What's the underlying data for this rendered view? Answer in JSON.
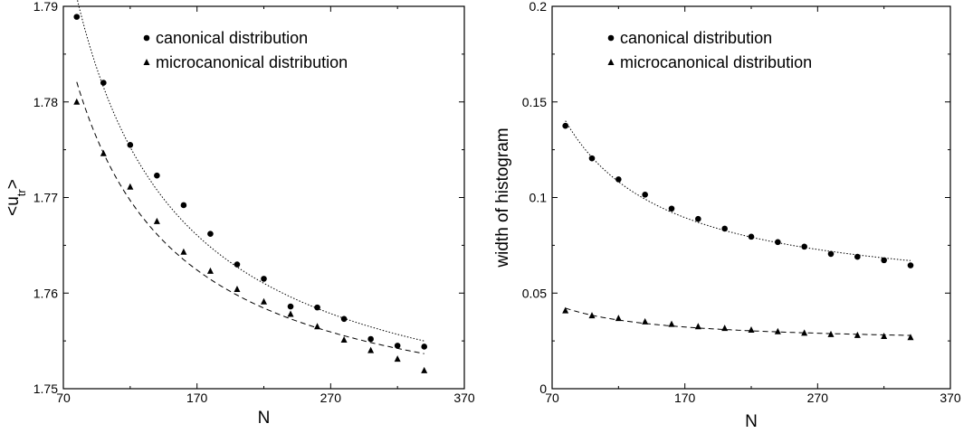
{
  "chart_data": [
    {
      "type": "scatter",
      "xlabel": "N",
      "ylabel": "<u",
      "ylabel_sub": "tr",
      "ylabel_suffix": ">",
      "xlim": [
        70,
        370
      ],
      "ylim": [
        1.75,
        1.79
      ],
      "xticks": [
        "70",
        "170",
        "270",
        "370"
      ],
      "yticks": [
        "1.75",
        "1.76",
        "1.77",
        "1.78",
        "1.79"
      ],
      "legend_position": "top-right",
      "grid": false,
      "series": [
        {
          "name": "canonical distribution",
          "marker": "circle",
          "fit_line": "dotted",
          "x": [
            80,
            100,
            120,
            140,
            160,
            180,
            200,
            220,
            240,
            260,
            280,
            300,
            320,
            340
          ],
          "y": [
            1.7889,
            1.782,
            1.7755,
            1.7723,
            1.7692,
            1.7662,
            1.763,
            1.7615,
            1.7586,
            1.7585,
            1.7573,
            1.7552,
            1.7545,
            1.7544
          ]
        },
        {
          "name": "microcanonical distribution",
          "marker": "triangle",
          "fit_line": "dashed",
          "x": [
            80,
            100,
            120,
            140,
            160,
            180,
            200,
            220,
            240,
            260,
            280,
            300,
            320,
            340
          ],
          "y": [
            1.78,
            1.7746,
            1.7711,
            1.7675,
            1.7643,
            1.7623,
            1.7604,
            1.7591,
            1.7578,
            1.7565,
            1.7551,
            1.754,
            1.7531,
            1.7519
          ]
        }
      ]
    },
    {
      "type": "scatter",
      "xlabel": "N",
      "ylabel": "width of histogram",
      "xlim": [
        70,
        370
      ],
      "ylim": [
        0,
        0.2
      ],
      "xticks": [
        "70",
        "170",
        "270",
        "370"
      ],
      "yticks": [
        "0",
        "0.05",
        "0.1",
        "0.15",
        "0.2"
      ],
      "legend_position": "top-right",
      "grid": false,
      "series": [
        {
          "name": "canonical distribution",
          "marker": "circle",
          "fit_line": "dotted",
          "x": [
            80,
            100,
            120,
            140,
            160,
            180,
            200,
            220,
            240,
            260,
            280,
            300,
            320,
            340
          ],
          "y": [
            0.1375,
            0.1205,
            0.1095,
            0.1015,
            0.0942,
            0.0888,
            0.0837,
            0.0795,
            0.0767,
            0.0743,
            0.0705,
            0.069,
            0.0672,
            0.0645
          ]
        },
        {
          "name": "microcanonical distribution",
          "marker": "triangle",
          "fit_line": "dashed",
          "x": [
            80,
            100,
            120,
            140,
            160,
            180,
            200,
            220,
            240,
            260,
            280,
            300,
            320,
            340
          ],
          "y": [
            0.0408,
            0.0382,
            0.0368,
            0.035,
            0.0337,
            0.0325,
            0.0316,
            0.0307,
            0.0299,
            0.0291,
            0.0284,
            0.0279,
            0.0274,
            0.0268
          ]
        }
      ]
    }
  ]
}
